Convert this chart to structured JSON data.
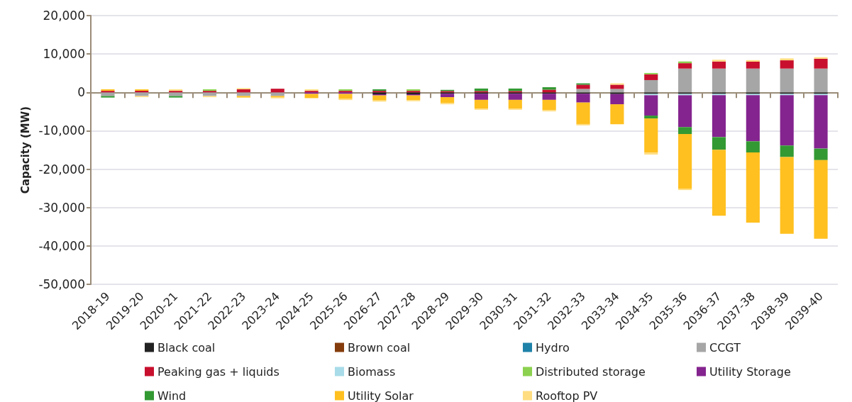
{
  "chart_data": {
    "type": "bar",
    "stacked": true,
    "ylabel": "Capacity (MW)",
    "categories": [
      "2018-19",
      "2019-20",
      "2020-21",
      "2021-22",
      "2022-23",
      "2023-24",
      "2024-25",
      "2025-26",
      "2026-27",
      "2027-28",
      "2028-29",
      "2029-30",
      "2030-31",
      "2031-32",
      "2032-33",
      "2033-34",
      "2034-35",
      "2035-36",
      "2036-37",
      "2037-38",
      "2038-39",
      "2039-40"
    ],
    "ylim": [
      -50000,
      20000
    ],
    "yticks": [
      {
        "value": -50000,
        "label": "-50,000"
      },
      {
        "value": -40000,
        "label": "-40,000"
      },
      {
        "value": -30000,
        "label": "-30,000"
      },
      {
        "value": -20000,
        "label": "-20,000"
      },
      {
        "value": -10000,
        "label": "-10,000"
      },
      0,
      {
        "value": 10000,
        "label": "10,000"
      },
      {
        "value": 20000,
        "label": "20,000"
      }
    ],
    "grid": "y",
    "legend": "bottom",
    "series": [
      {
        "name": "Black coal",
        "color": "#222222",
        "values": [
          null,
          null,
          null,
          null,
          null,
          null,
          null,
          null,
          -500,
          -500,
          -350,
          -350,
          -350,
          -350,
          -350,
          -450,
          -400,
          -400,
          -400,
          -400,
          -400,
          -400
        ]
      },
      {
        "name": "Brown coal",
        "color": "#843c0c",
        "values": [
          null,
          null,
          null,
          null,
          null,
          null,
          null,
          null,
          null,
          null,
          null,
          null,
          null,
          null,
          null,
          null,
          null,
          null,
          null,
          null,
          null,
          null
        ]
      },
      {
        "name": "Hydro",
        "color": "#1f82a8",
        "values": [
          null,
          null,
          null,
          null,
          null,
          null,
          null,
          null,
          null,
          null,
          null,
          null,
          null,
          null,
          null,
          null,
          null,
          null,
          null,
          null,
          null,
          null
        ]
      },
      {
        "name": "CCGT",
        "color": "#a6a6a6",
        "values": [
          -950,
          -950,
          -950,
          -950,
          -950,
          -950,
          null,
          null,
          null,
          null,
          null,
          null,
          null,
          null,
          900,
          900,
          3200,
          6200,
          6200,
          6200,
          6200,
          6200
        ]
      },
      {
        "name": "Peaking gas + liquids",
        "color": "#c8102e",
        "values": [
          400,
          400,
          400,
          400,
          800,
          950,
          400,
          400,
          400,
          400,
          350,
          350,
          350,
          700,
          1100,
          1100,
          1500,
          1400,
          1850,
          1800,
          2150,
          2550
        ]
      },
      {
        "name": "Biomass",
        "color": "#a8dce8",
        "values": [
          null,
          null,
          null,
          null,
          null,
          null,
          null,
          null,
          null,
          null,
          null,
          null,
          null,
          null,
          null,
          null,
          -350,
          -350,
          -350,
          -350,
          -350,
          -350
        ]
      },
      {
        "name": "Distributed storage",
        "color": "#8cd14f",
        "values": [
          null,
          null,
          null,
          400,
          null,
          null,
          null,
          400,
          null,
          400,
          null,
          null,
          null,
          null,
          null,
          null,
          350,
          450,
          null,
          null,
          null,
          null
        ]
      },
      {
        "name": "Utility Storage",
        "color": "#84248f",
        "values": [
          null,
          null,
          null,
          null,
          null,
          null,
          -400,
          -400,
          -300,
          -300,
          -900,
          -1600,
          -1600,
          -1600,
          -2300,
          -2650,
          -5300,
          -8300,
          -10900,
          -12000,
          -13100,
          -13900
        ]
      },
      {
        "name": "Wind",
        "color": "#339933",
        "values": [
          -400,
          null,
          -400,
          null,
          null,
          null,
          null,
          null,
          400,
          null,
          300,
          650,
          650,
          650,
          350,
          null,
          -750,
          -1800,
          -3300,
          -2900,
          -3000,
          -3000
        ]
      },
      {
        "name": "Utility Solar",
        "color": "#ffc020",
        "values": [
          400,
          400,
          null,
          null,
          -400,
          -300,
          -1100,
          -1300,
          -1300,
          -1200,
          -1550,
          -2300,
          -2300,
          -2700,
          -5600,
          -5200,
          -8900,
          -14200,
          -17200,
          -18300,
          -20000,
          -20500
        ]
      },
      {
        "name": "Rooftop PV",
        "color": "#ffdd80",
        "values": [
          null,
          -300,
          400,
          -300,
          300,
          -300,
          400,
          -300,
          -300,
          -300,
          -300,
          -300,
          -300,
          -300,
          -350,
          350,
          -500,
          -400,
          450,
          400,
          500,
          400
        ]
      }
    ]
  }
}
